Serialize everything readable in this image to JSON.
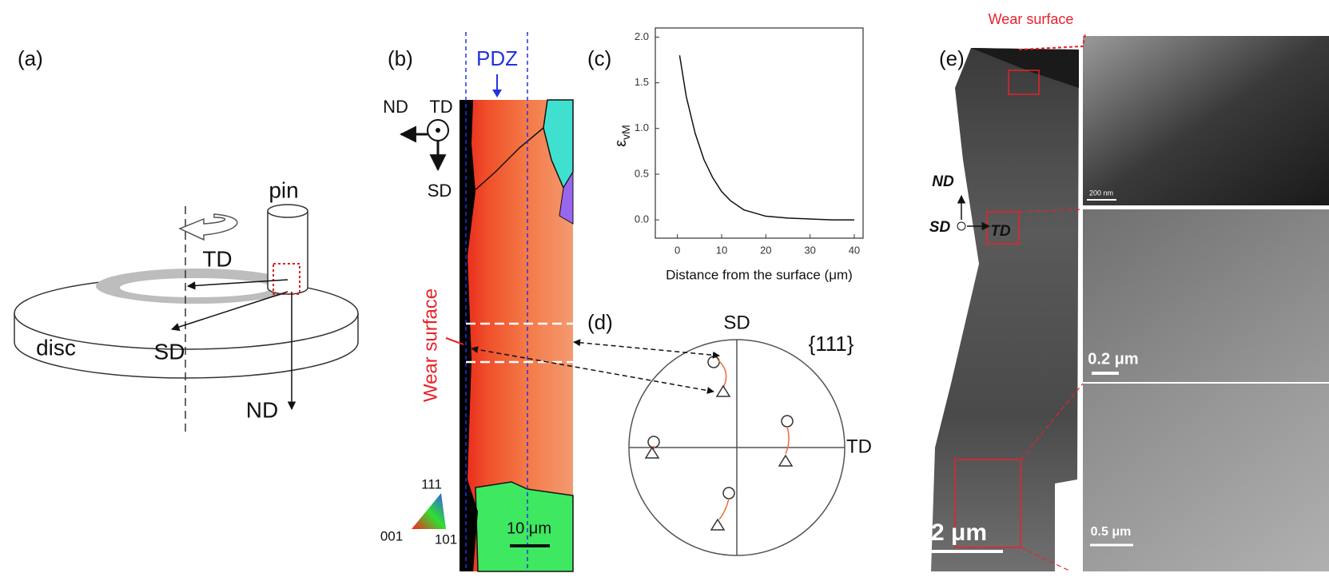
{
  "panel_a": {
    "label": "(a)",
    "pin": "pin",
    "td": "TD",
    "sd": "SD",
    "nd": "ND",
    "disc": "disc"
  },
  "panel_b": {
    "label": "(b)",
    "pdz": "PDZ",
    "nd": "ND",
    "td": "TD",
    "sd": "SD",
    "wear_surface": "Wear surface",
    "scale_bar": "10 μm",
    "ipf_111": "111",
    "ipf_001": "001",
    "ipf_101": "101"
  },
  "chart_data": {
    "type": "line",
    "panel_label": "(c)",
    "x_label": "Distance from the surface (μm)",
    "y_label": {
      "symbol": "ε",
      "subscript": "vM"
    },
    "x": [
      0.5,
      2,
      4,
      6,
      8,
      10,
      12,
      15,
      20,
      25,
      30,
      35,
      40
    ],
    "series": [
      {
        "color": "#111111",
        "values": [
          1.8,
          1.35,
          0.95,
          0.66,
          0.46,
          0.31,
          0.21,
          0.11,
          0.04,
          0.02,
          0.01,
          0.0,
          0.0
        ]
      }
    ],
    "xlim": [
      -5,
      42
    ],
    "ylim": [
      -0.2,
      2.1
    ],
    "xticks": [
      0,
      10,
      20,
      30,
      40
    ],
    "yticks": [
      {
        "value": 0,
        "label": "0.0"
      },
      {
        "value": 0.5,
        "label": "0.5"
      },
      {
        "value": 1,
        "label": "1.0"
      },
      {
        "value": 1.5,
        "label": "1.5"
      },
      {
        "value": 2,
        "label": "2.0"
      }
    ],
    "grid": false
  },
  "panel_d": {
    "label": "(d)",
    "sd": "SD",
    "td": "TD",
    "plane": "{111}"
  },
  "panel_e": {
    "label": "(e)",
    "wear_surface": "Wear surface",
    "nd": "ND",
    "sd": "SD",
    "td": "TD",
    "scale_main": "2 μm",
    "scale_top": "200 nm",
    "scale_mid": "0.2 μm",
    "scale_bottom": "0.5 μm"
  }
}
